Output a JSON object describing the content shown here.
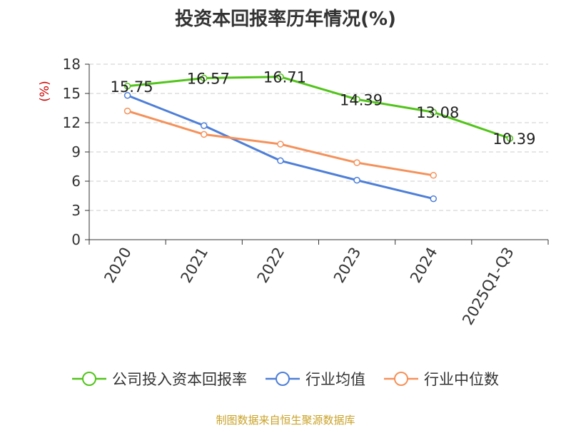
{
  "chart_data": {
    "type": "line",
    "title": "投资本回报率历年情况(%)",
    "ylabel": "(%)",
    "xlabel": "",
    "categories": [
      "2020",
      "2021",
      "2022",
      "2023",
      "2024",
      "2025Q1-Q3"
    ],
    "ylim": [
      0,
      18
    ],
    "yticks": [
      0,
      3,
      6,
      9,
      12,
      15,
      18
    ],
    "grid": true,
    "legend_position": "bottom",
    "series": [
      {
        "name": "公司投入资本回报率",
        "color": "#52c41a",
        "values": [
          15.75,
          16.57,
          16.71,
          14.39,
          13.08,
          10.39
        ],
        "labels": [
          "15.75",
          "16.57",
          "16.71",
          "14.39",
          "13.08",
          "10.39"
        ]
      },
      {
        "name": "行业均值",
        "color": "#4e7fd8",
        "values": [
          14.8,
          11.7,
          8.1,
          6.1,
          4.2,
          null
        ]
      },
      {
        "name": "行业中位数",
        "color": "#f5915a",
        "values": [
          13.2,
          10.8,
          9.8,
          7.9,
          6.6,
          null
        ]
      }
    ]
  },
  "source_note": "制图数据来自恒生聚源数据库"
}
